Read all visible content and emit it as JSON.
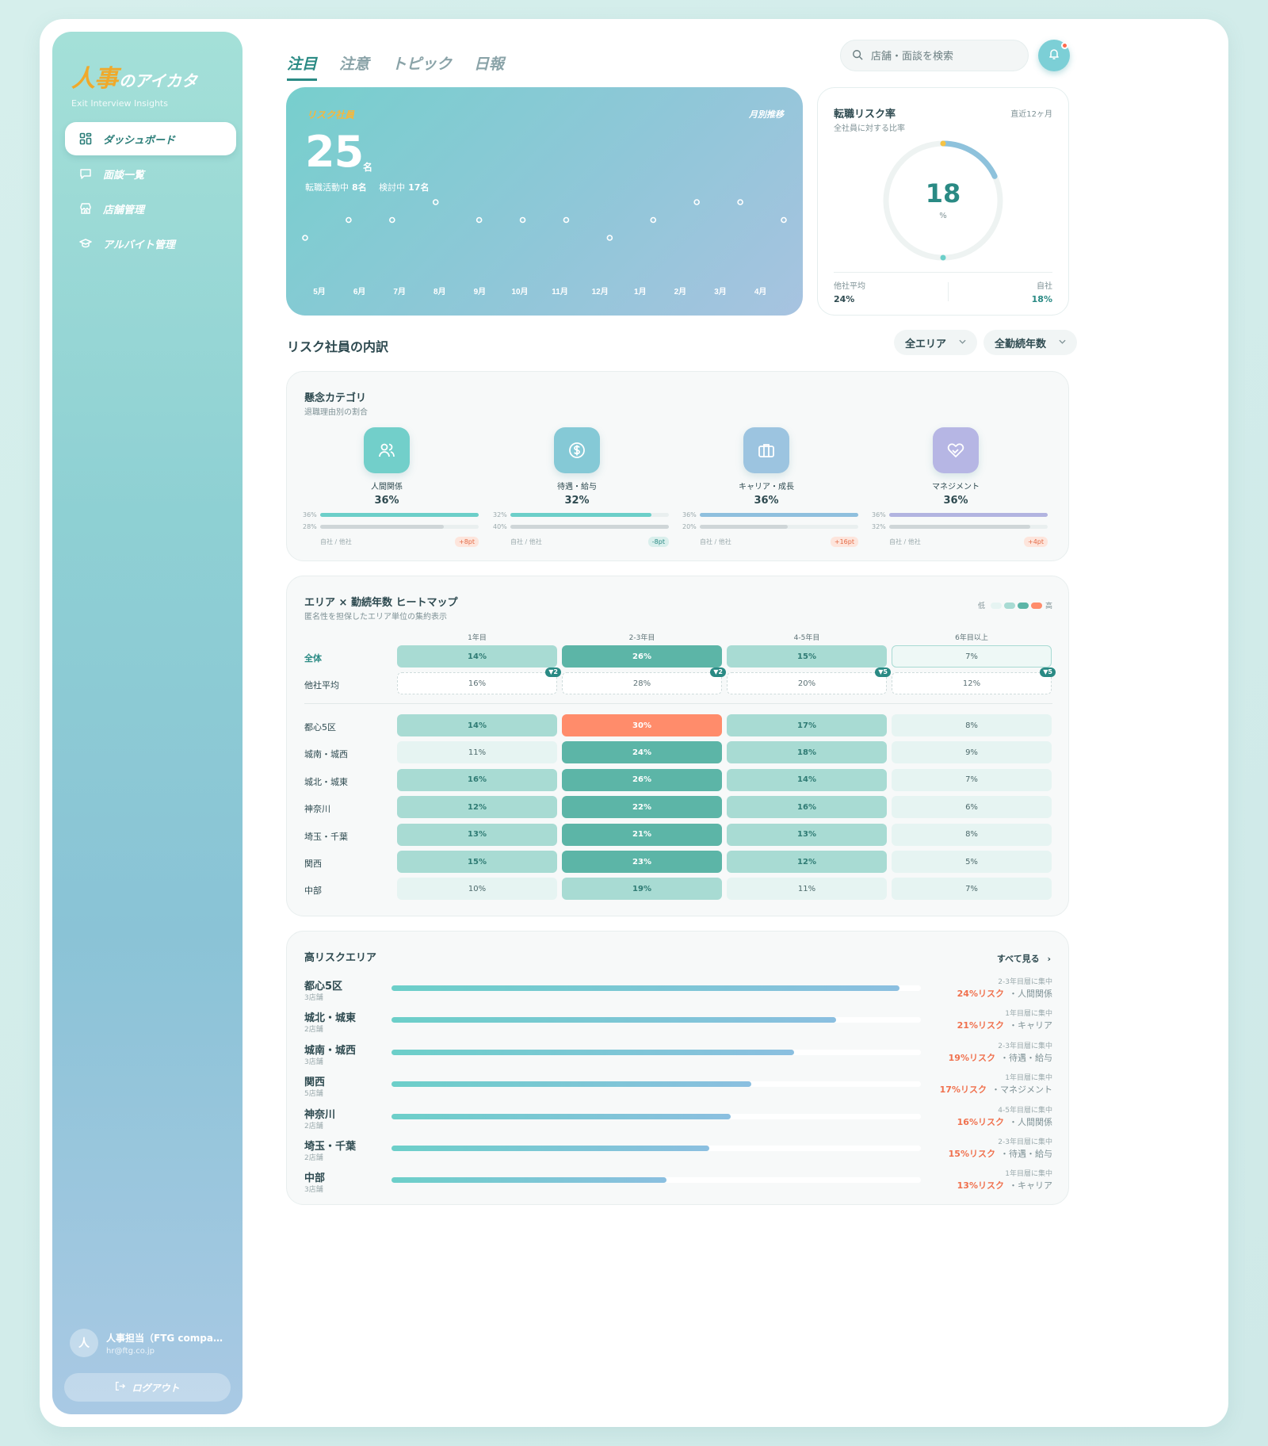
{
  "brand": {
    "logo_main": "人事",
    "logo_rest": "のアイカタ",
    "tagline": "Exit Interview Insights"
  },
  "sidebar": {
    "items": [
      {
        "label": "ダッシュボード",
        "icon": "grid-icon",
        "active": true
      },
      {
        "label": "面談一覧",
        "icon": "chat-icon",
        "active": false
      },
      {
        "label": "店舗管理",
        "icon": "store-icon",
        "active": false
      },
      {
        "label": "アルバイト管理",
        "icon": "graduation-icon",
        "active": false
      }
    ],
    "user": {
      "avatar": "人",
      "name": "人事担当（FTG company）",
      "email": "hr@ftg.co.jp"
    },
    "logout_label": "ログアウト"
  },
  "topbar": {
    "tabs": [
      {
        "label": "注目",
        "active": true
      },
      {
        "label": "注意",
        "active": false
      },
      {
        "label": "トピック",
        "active": false
      },
      {
        "label": "日報",
        "active": false
      }
    ],
    "search_placeholder": "店舗・面談を検索"
  },
  "hero": {
    "label": "リスク社員",
    "link": "月別推移",
    "count": "25",
    "unit": "名",
    "active_label": "転職活動中",
    "active_value": "8名",
    "considering_label": "検討中",
    "considering_value": "17名",
    "chart_data": {
      "type": "scatter",
      "categories": [
        "5月",
        "6月",
        "7月",
        "8月",
        "9月",
        "10月",
        "11月",
        "12月",
        "1月",
        "2月",
        "3月",
        "4月"
      ],
      "values": [
        22,
        25,
        25,
        28,
        25,
        25,
        25,
        22,
        25,
        28,
        28,
        25
      ],
      "ylim": [
        14,
        30
      ]
    }
  },
  "rate": {
    "title": "転職リスク率",
    "subtitle": "全社員に対する比率",
    "period": "直近12ヶ月",
    "value": "18",
    "unit": "%",
    "fraction": 0.18,
    "other_label": "他社平均",
    "other_value": "24%",
    "self_label": "自社",
    "self_value": "18%"
  },
  "breakdown": {
    "title": "リスク社員の内訳",
    "filter_area": "全エリア",
    "filter_tenure": "全勤続年数"
  },
  "concerns": {
    "title": "懸念カテゴリ",
    "subtitle": "退職理由別の割合",
    "compare_label": "自社 / 他社",
    "items": [
      {
        "name": "人間関係",
        "value": "36%",
        "self": 36,
        "self_label": "36%",
        "other": 28,
        "other_label": "28%",
        "diff": "+8pt",
        "dir": "up",
        "icon": "people-icon",
        "color": "#6ccfc9",
        "icon_bg": "#72cfca"
      },
      {
        "name": "待遇・給与",
        "value": "32%",
        "self": 32,
        "self_label": "32%",
        "other": 40,
        "other_label": "40%",
        "diff": "-8pt",
        "dir": "down",
        "icon": "dollar-icon",
        "color": "#6ccfc9",
        "icon_bg": "#85c9d6"
      },
      {
        "name": "キャリア・成長",
        "value": "36%",
        "self": 36,
        "self_label": "36%",
        "other": 20,
        "other_label": "20%",
        "diff": "+16pt",
        "dir": "up",
        "icon": "briefcase-icon",
        "color": "#8fc0de",
        "icon_bg": "#9cc4e0"
      },
      {
        "name": "マネジメント",
        "value": "36%",
        "self": 36,
        "self_label": "36%",
        "other": 32,
        "other_label": "32%",
        "diff": "+4pt",
        "dir": "up",
        "icon": "handshake-icon",
        "color": "#b2b4e0",
        "icon_bg": "#b6b6e4"
      }
    ]
  },
  "heatmap": {
    "title": "エリア × 勤続年数 ヒートマップ",
    "subtitle": "匿名性を担保したエリア単位の集約表示",
    "legend_low": "低",
    "legend_high": "高",
    "legend_colors": [
      "#e6f4f2",
      "#a8dbd3",
      "#5cb5a7",
      "#ff8c6b"
    ],
    "columns": [
      "1年目",
      "2-3年目",
      "4-5年目",
      "6年目以上"
    ],
    "total_label": "全体",
    "total": [
      "14%",
      "26%",
      "15%",
      "7%"
    ],
    "total_levels": [
      1,
      2,
      1,
      0
    ],
    "other_label": "他社平均",
    "other": [
      "16%",
      "28%",
      "20%",
      "12%"
    ],
    "other_badges": [
      "▼2",
      "▼2",
      "▼5",
      "▼5"
    ],
    "rows": [
      {
        "area": "都心5区",
        "values": [
          "14%",
          "30%",
          "17%",
          "8%"
        ],
        "levels": [
          1,
          3,
          1,
          0
        ]
      },
      {
        "area": "城南・城西",
        "values": [
          "11%",
          "24%",
          "18%",
          "9%"
        ],
        "levels": [
          0,
          2,
          1,
          0
        ]
      },
      {
        "area": "城北・城東",
        "values": [
          "16%",
          "26%",
          "14%",
          "7%"
        ],
        "levels": [
          1,
          2,
          1,
          0
        ]
      },
      {
        "area": "神奈川",
        "values": [
          "12%",
          "22%",
          "16%",
          "6%"
        ],
        "levels": [
          1,
          2,
          1,
          0
        ]
      },
      {
        "area": "埼玉・千葉",
        "values": [
          "13%",
          "21%",
          "13%",
          "8%"
        ],
        "levels": [
          1,
          2,
          1,
          0
        ]
      },
      {
        "area": "関西",
        "values": [
          "15%",
          "23%",
          "12%",
          "5%"
        ],
        "levels": [
          1,
          2,
          1,
          0
        ]
      },
      {
        "area": "中部",
        "values": [
          "10%",
          "19%",
          "11%",
          "7%"
        ],
        "levels": [
          0,
          1,
          0,
          0
        ]
      }
    ]
  },
  "high_risk": {
    "title": "高リスクエリア",
    "see_all": "すべて見る",
    "items": [
      {
        "area": "都心5区",
        "stores": "3店舗",
        "fill": 0.96,
        "note": "2-3年目層に集中",
        "risk": "24%リスク",
        "reason": "・人間関係"
      },
      {
        "area": "城北・城東",
        "stores": "2店舗",
        "fill": 0.84,
        "note": "1年目層に集中",
        "risk": "21%リスク",
        "reason": "・キャリア"
      },
      {
        "area": "城南・城西",
        "stores": "3店舗",
        "fill": 0.76,
        "note": "2-3年目層に集中",
        "risk": "19%リスク",
        "reason": "・待遇・給与"
      },
      {
        "area": "関西",
        "stores": "5店舗",
        "fill": 0.68,
        "note": "1年目層に集中",
        "risk": "17%リスク",
        "reason": "・マネジメント"
      },
      {
        "area": "神奈川",
        "stores": "2店舗",
        "fill": 0.64,
        "note": "4-5年目層に集中",
        "risk": "16%リスク",
        "reason": "・人間関係"
      },
      {
        "area": "埼玉・千葉",
        "stores": "2店舗",
        "fill": 0.6,
        "note": "2-3年目層に集中",
        "risk": "15%リスク",
        "reason": "・待遇・給与"
      },
      {
        "area": "中部",
        "stores": "3店舗",
        "fill": 0.52,
        "note": "1年目層に集中",
        "risk": "13%リスク",
        "reason": "・キャリア"
      }
    ]
  }
}
